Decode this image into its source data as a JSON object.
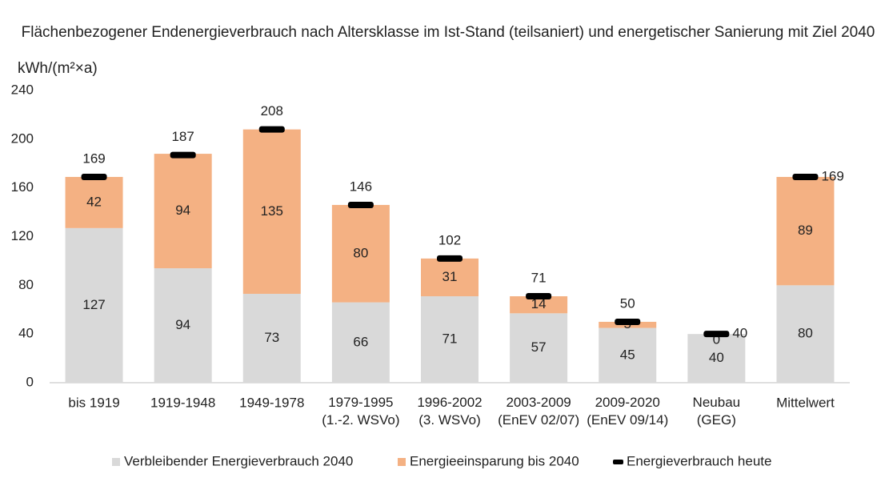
{
  "chart_data": {
    "type": "bar",
    "stacked": true,
    "title": "Flächenbezogener Endenergieverbrauch nach Altersklasse im Ist-Stand (teilsaniert) und energetischer Sanierung mit Ziel 2040",
    "y_label": "kWh/(m²×a)",
    "categories": [
      "bis 1919",
      "1919-1948",
      "1949-1978",
      "1979-1995\n(1.-2. WSVo)",
      "1996-2002\n(3. WSVo)",
      "2003-2009\n(EnEV 02/07)",
      "2009-2020\n(EnEV 09/14)",
      "Neubau\n(GEG)",
      "Mittelwert"
    ],
    "series": [
      {
        "name": "Verbleibender Energieverbrauch 2040",
        "color": "#d9d9d9",
        "values": [
          127,
          94,
          73,
          66,
          71,
          57,
          45,
          40,
          80
        ]
      },
      {
        "name": "Energieeinsparung bis 2040",
        "color": "#f4b183",
        "values": [
          42,
          94,
          135,
          80,
          31,
          14,
          5,
          0,
          89
        ]
      },
      {
        "name": "Energieverbrauch heute",
        "color": "#000000",
        "type": "marker",
        "values": [
          169,
          187,
          208,
          146,
          102,
          71,
          50,
          40,
          169
        ]
      }
    ],
    "ylim": [
      0,
      240
    ],
    "yticks": [
      0,
      40,
      80,
      120,
      160,
      200,
      240
    ],
    "grid": false,
    "legend": "bottom"
  }
}
